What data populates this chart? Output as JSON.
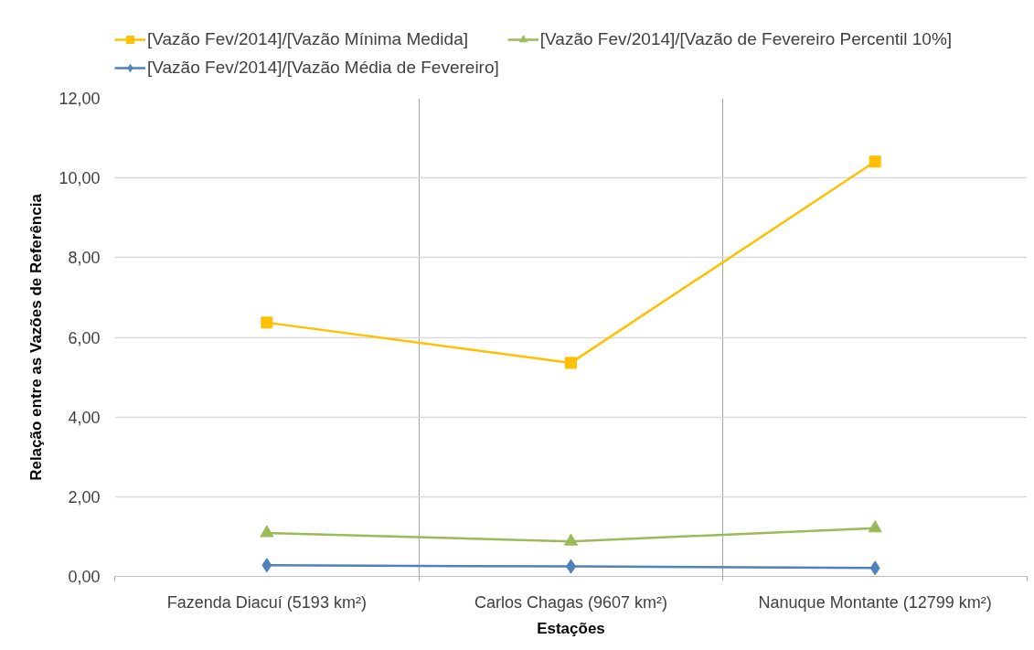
{
  "chart_data": {
    "type": "line",
    "xlabel": "Estações",
    "ylabel": "Relação entre as Vazões de Referência",
    "categories": [
      "Fazenda Diacuí (5193 km²)",
      "Carlos Chagas (9607 km²)",
      "Nanuque Montante (12799 km²)"
    ],
    "series": [
      {
        "name": "[Vazão Fev/2014]/[Vazão Mínima Medida]",
        "color": "#ffc000",
        "marker": "square",
        "values": [
          6.37,
          5.36,
          10.41
        ]
      },
      {
        "name": "[Vazão Fev/2014]/[Vazão de Fevereiro Percentil 10%]",
        "color": "#9bbb59",
        "marker": "triangle",
        "values": [
          1.09,
          0.88,
          1.21
        ]
      },
      {
        "name": "[Vazão Fev/2014]/[Vazão Média de Fevereiro]",
        "color": "#4f81bd",
        "marker": "diamond",
        "values": [
          0.28,
          0.25,
          0.21
        ]
      }
    ],
    "ylim": [
      0,
      12
    ],
    "yticks": [
      {
        "value": 0,
        "label": "0,00"
      },
      {
        "value": 2,
        "label": "2,00"
      },
      {
        "value": 4,
        "label": "4,00"
      },
      {
        "value": 6,
        "label": "6,00"
      },
      {
        "value": 8,
        "label": "8,00"
      },
      {
        "value": 10,
        "label": "10,00"
      },
      {
        "value": 12,
        "label": "12,00"
      }
    ],
    "grid": true,
    "legend": "top"
  }
}
